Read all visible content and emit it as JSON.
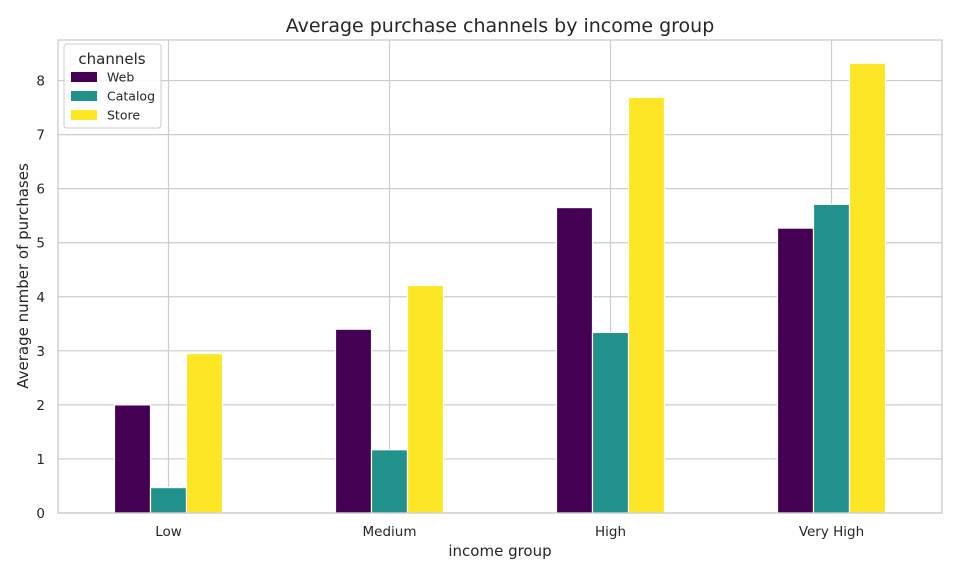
{
  "chart_data": {
    "type": "bar",
    "title": "Average purchase channels by income group",
    "xlabel": "income group",
    "ylabel": "Average number of purchases",
    "categories": [
      "Low",
      "Medium",
      "High",
      "Very High"
    ],
    "series": [
      {
        "name": "Web",
        "values": [
          2.0,
          3.4,
          5.65,
          5.27
        ],
        "color": "#440154"
      },
      {
        "name": "Catalog",
        "values": [
          0.47,
          1.17,
          3.34,
          5.71
        ],
        "color": "#21918c"
      },
      {
        "name": "Store",
        "values": [
          2.95,
          4.21,
          7.69,
          8.32
        ],
        "color": "#fde725"
      }
    ],
    "ylim": [
      0,
      8.75
    ],
    "yticks": [
      0,
      1,
      2,
      3,
      4,
      5,
      6,
      7,
      8
    ],
    "grid": true,
    "legend": {
      "title": "channels",
      "placement": "top-left"
    }
  }
}
